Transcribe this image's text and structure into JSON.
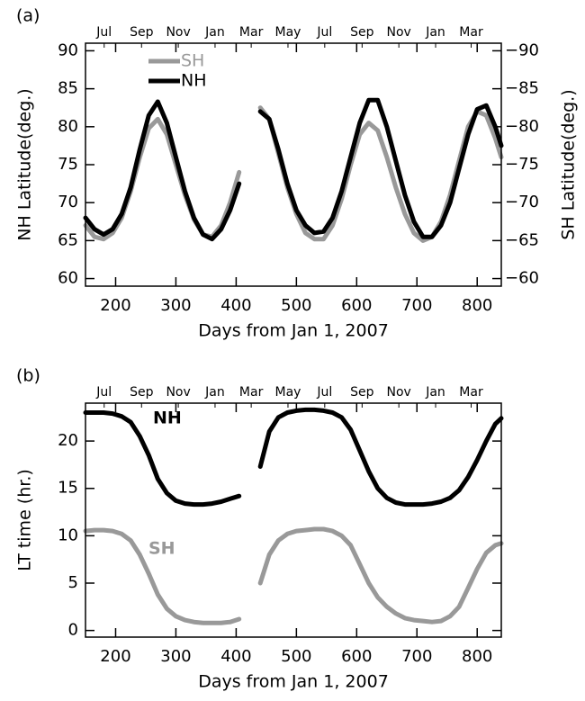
{
  "chart_data": [
    {
      "type": "line",
      "panel_label": "(a)",
      "xlabel": "Days from Jan 1, 2007",
      "ylabel": "NH Latitude(deg.)",
      "y2label": "SH Latitude(deg.)",
      "x": [
        150,
        165,
        180,
        195,
        210,
        225,
        240,
        255,
        270,
        285,
        300,
        315,
        330,
        345,
        360,
        375,
        390,
        405,
        420,
        440,
        455,
        470,
        485,
        500,
        515,
        530,
        545,
        560,
        575,
        590,
        605,
        620,
        635,
        650,
        665,
        680,
        695,
        710,
        725,
        740,
        755,
        770,
        785,
        800,
        815,
        830,
        840
      ],
      "xlim": [
        150,
        840
      ],
      "xticks": [
        200,
        300,
        400,
        500,
        600,
        700,
        800
      ],
      "x2ticks": [
        {
          "value": 181,
          "label": "Jul"
        },
        {
          "value": 243,
          "label": "Sep"
        },
        {
          "value": 304,
          "label": "Nov"
        },
        {
          "value": 365,
          "label": "Jan"
        },
        {
          "value": 425,
          "label": "Mar"
        },
        {
          "value": 486,
          "label": "May"
        },
        {
          "value": 547,
          "label": "Jul"
        },
        {
          "value": 609,
          "label": "Sep"
        },
        {
          "value": 670,
          "label": "Nov"
        },
        {
          "value": 731,
          "label": "Jan"
        },
        {
          "value": 790,
          "label": "Mar"
        }
      ],
      "ylim": [
        59,
        91
      ],
      "yticks": [
        60,
        65,
        70,
        75,
        80,
        85,
        90
      ],
      "y2lim": [
        -59,
        -91
      ],
      "y2ticks": [
        {
          "value": -60,
          "label": "−60"
        },
        {
          "value": -65,
          "label": "−65"
        },
        {
          "value": -70,
          "label": "−70"
        },
        {
          "value": -75,
          "label": "−75"
        },
        {
          "value": -80,
          "label": "−80"
        },
        {
          "value": -85,
          "label": "−85"
        },
        {
          "value": -90,
          "label": "−90"
        }
      ],
      "legend": "upper left",
      "series": [
        {
          "name": "SH",
          "color": "#999999",
          "axis": "y2",
          "values": [
            -67,
            -65.5,
            -65.2,
            -66,
            -68,
            -71.5,
            -76,
            -79.8,
            -81,
            -79,
            -75,
            -71,
            -67.8,
            -65.8,
            -65.5,
            -67,
            -70,
            -74,
            null,
            -82.5,
            -81,
            -76.5,
            -72,
            -68.5,
            -66,
            -65.2,
            -65.2,
            -67,
            -70.5,
            -75,
            -79,
            -80.5,
            -79.5,
            -76,
            -72,
            -68.5,
            -66,
            -65,
            -65.5,
            -67.5,
            -71,
            -75.5,
            -80,
            -82,
            -81.5,
            -78.5,
            -76
          ]
        },
        {
          "name": "NH",
          "color": "#000000",
          "values": [
            68,
            66.5,
            65.8,
            66.5,
            68.5,
            72,
            77,
            81.5,
            83.3,
            80.5,
            76,
            71.5,
            68,
            65.8,
            65.2,
            66.5,
            69,
            72.5,
            null,
            82,
            81,
            77,
            72.5,
            69,
            67,
            66,
            66.2,
            68,
            71.5,
            76,
            80.5,
            83.5,
            83.5,
            80,
            75.5,
            71,
            67.5,
            65.5,
            65.5,
            67,
            70,
            74.5,
            79,
            82.3,
            82.8,
            80,
            77.5
          ]
        }
      ]
    },
    {
      "type": "line",
      "panel_label": "(b)",
      "xlabel": "Days from Jan 1, 2007",
      "ylabel": "LT time (hr.)",
      "x": [
        150,
        165,
        180,
        195,
        210,
        225,
        240,
        255,
        270,
        285,
        300,
        315,
        330,
        345,
        360,
        375,
        390,
        405,
        420,
        440,
        455,
        470,
        485,
        500,
        515,
        530,
        545,
        560,
        575,
        590,
        605,
        620,
        635,
        650,
        665,
        680,
        695,
        710,
        725,
        740,
        755,
        770,
        785,
        800,
        815,
        830,
        840
      ],
      "xlim": [
        150,
        840
      ],
      "xticks": [
        200,
        300,
        400,
        500,
        600,
        700,
        800
      ],
      "x2ticks": [
        {
          "value": 181,
          "label": "Jul"
        },
        {
          "value": 243,
          "label": "Sep"
        },
        {
          "value": 304,
          "label": "Nov"
        },
        {
          "value": 365,
          "label": "Jan"
        },
        {
          "value": 425,
          "label": "Mar"
        },
        {
          "value": 486,
          "label": "May"
        },
        {
          "value": 547,
          "label": "Jul"
        },
        {
          "value": 609,
          "label": "Sep"
        },
        {
          "value": 670,
          "label": "Nov"
        },
        {
          "value": 731,
          "label": "Jan"
        },
        {
          "value": 790,
          "label": "Mar"
        }
      ],
      "ylim": [
        -0.7,
        24
      ],
      "yticks": [
        0,
        5,
        10,
        15,
        20
      ],
      "series": [
        {
          "name": "NH",
          "color": "#000000",
          "values": [
            23,
            23,
            23,
            22.9,
            22.6,
            22,
            20.5,
            18.5,
            16,
            14.5,
            13.7,
            13.4,
            13.3,
            13.3,
            13.4,
            13.6,
            13.9,
            14.2,
            null,
            17.3,
            21,
            22.5,
            23,
            23.2,
            23.3,
            23.3,
            23.2,
            23,
            22.5,
            21.2,
            19,
            16.8,
            15,
            14,
            13.5,
            13.3,
            13.3,
            13.3,
            13.4,
            13.6,
            14,
            14.8,
            16.2,
            18,
            20,
            21.8,
            22.4
          ]
        },
        {
          "name": "SH",
          "color": "#999999",
          "values": [
            10.5,
            10.6,
            10.6,
            10.5,
            10.2,
            9.5,
            8,
            6,
            3.8,
            2.3,
            1.5,
            1.1,
            0.9,
            0.8,
            0.8,
            0.8,
            0.9,
            1.2,
            null,
            5,
            8,
            9.5,
            10.2,
            10.5,
            10.6,
            10.7,
            10.7,
            10.5,
            10,
            9,
            7,
            5,
            3.5,
            2.5,
            1.8,
            1.3,
            1.1,
            1,
            0.9,
            1,
            1.5,
            2.5,
            4.5,
            6.5,
            8.2,
            9,
            9.2
          ]
        }
      ]
    }
  ]
}
